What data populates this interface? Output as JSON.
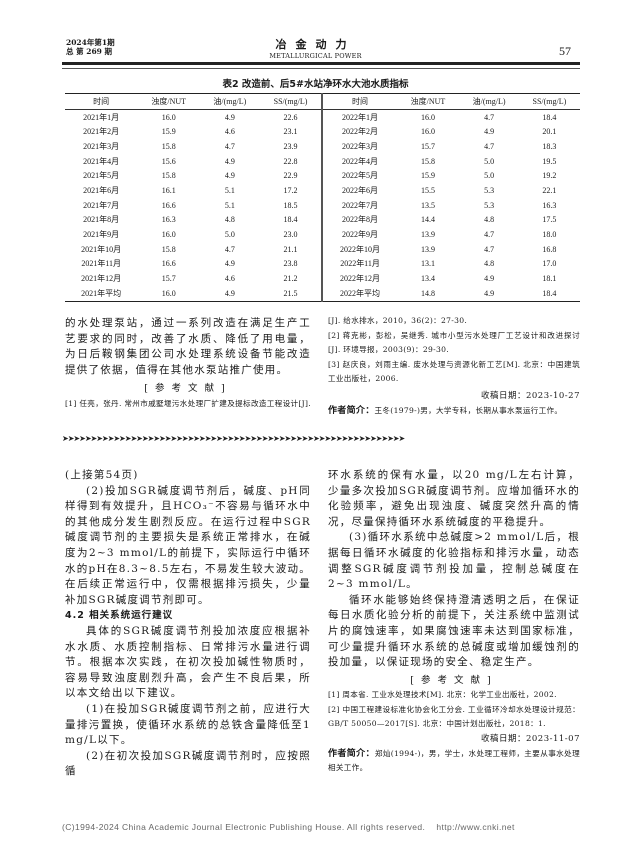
{
  "header": {
    "issue_line1": "2024年第1期",
    "issue_line2": "总 第 269 期",
    "journal_cn": "冶金动力",
    "journal_en": "METALLURGICAL POWER",
    "page_number": "57"
  },
  "table": {
    "caption": "表2 改造前、后5#水站净环水大池水质指标",
    "columns": [
      "时间",
      "浊度/NUT",
      "油/(mg/L)",
      "SS/(mg/L)",
      "时间",
      "浊度/NUT",
      "油/(mg/L)",
      "SS/(mg/L)"
    ],
    "rows": [
      [
        "2021年1月",
        "16.0",
        "4.9",
        "22.6",
        "2022年1月",
        "16.0",
        "4.7",
        "18.4"
      ],
      [
        "2021年2月",
        "15.9",
        "4.6",
        "23.1",
        "2022年2月",
        "16.0",
        "4.9",
        "20.1"
      ],
      [
        "2021年3月",
        "15.8",
        "4.7",
        "23.9",
        "2022年3月",
        "15.7",
        "4.7",
        "18.3"
      ],
      [
        "2021年4月",
        "15.6",
        "4.9",
        "22.8",
        "2022年4月",
        "15.8",
        "5.0",
        "19.5"
      ],
      [
        "2021年5月",
        "15.8",
        "4.9",
        "22.9",
        "2022年5月",
        "15.9",
        "5.0",
        "19.2"
      ],
      [
        "2021年6月",
        "16.1",
        "5.1",
        "17.2",
        "2022年6月",
        "15.5",
        "5.3",
        "22.1"
      ],
      [
        "2021年7月",
        "16.6",
        "5.1",
        "18.5",
        "2022年7月",
        "13.5",
        "5.3",
        "16.3"
      ],
      [
        "2021年8月",
        "16.3",
        "4.8",
        "18.4",
        "2022年8月",
        "14.4",
        "4.8",
        "17.5"
      ],
      [
        "2021年9月",
        "16.0",
        "5.0",
        "23.0",
        "2022年9月",
        "13.9",
        "4.7",
        "18.0"
      ],
      [
        "2021年10月",
        "15.8",
        "4.7",
        "21.1",
        "2022年10月",
        "13.9",
        "4.7",
        "16.8"
      ],
      [
        "2021年11月",
        "16.6",
        "4.9",
        "23.8",
        "2022年11月",
        "13.1",
        "4.8",
        "17.0"
      ],
      [
        "2021年12月",
        "15.7",
        "4.6",
        "21.2",
        "2022年12月",
        "13.4",
        "4.9",
        "18.1"
      ],
      [
        "2021年平均",
        "16.0",
        "4.9",
        "21.5",
        "2022年平均",
        "14.8",
        "4.9",
        "18.4"
      ]
    ]
  },
  "article1": {
    "conclusion": "的水处理泵站，通过一系列改造在满足生产工艺要求的同时，改善了水质、降低了用电量，为日后鞍钢集团公司水处理系统设备节能改造提供了依据，值得在其他水泵站推广使用。",
    "refs_heading": "[参考文献]",
    "ref1": "[1] 任亮，张丹. 常州市戚墅堰污水处理厂扩建及提标改造工程设计[J]. 给水排水，2010，36(2)：27-30.",
    "ref1_a": "[1] 任亮，张丹. 常州市戚墅堰污水处理厂扩建及提标改造工程设计",
    "ref1_b": "[J]. 给水排水，2010，36(2)：27-30.",
    "ref2": "[2] 蒋克彬，彭松，吴继秀. 城市小型污水处理厂工艺设计和改进探讨[J]. 环境导报，2003(9)：29-30.",
    "ref3": "[3] 赵庆良，刘雨主编. 废水处理与资源化新工艺[M]. 北京：中国建筑工业出版社，2006.",
    "received": "收稿日期：2023-10-27",
    "author_label": "作者简介：",
    "author": "王冬(1979-)男，大学专科，长期从事水泵运行工作。"
  },
  "article2": {
    "continued": "(上接第54页)",
    "p1": "(2)投加SGR碱度调节剂后，碱度、pH同样得到有效提升，且HCO₃⁻不容易与循环水中的其他成分发生剧烈反应。在运行过程中SGR碱度调节剂的主要损失是系统正常排水，在碱度为2~3 mmol/L的前提下，实际运行中循环水的pH在8.3~8.5左右，不易发生较大波动。在后续正常运行中，仅需根据排污损失，少量补加SGR碱度调节剂即可。",
    "section": "4.2 相关系统运行建议",
    "p2": "具体的SGR碱度调节剂投加浓度应根据补水水质、水质控制指标、日常排污水量进行调节。根据本次实践，在初次投加碱性物质时，容易导致浊度剧烈升高，会产生不良后果，所以本文给出以下建议。",
    "p3": "(1)在投加SGR碱度调节剂之前，应进行大量排污置换，使循环水系统的总铁含量降低至1 mg/L以下。",
    "p4": "(2)在初次投加SGR碱度调节剂时，应按照循环水系统的保有水量，以20 mg/L左右计算，少量多次投加SGR碱度调节剂。应增加循环水的化验频率，避免出现浊度、碱度突然升高的情况，尽量保持循环水系统碱度的平稳提升。",
    "p5": "(3)循环水系统中总碱度>2 mmol/L后，根据每日循环水碱度的化验指标和排污水量，动态调整SGR碱度调节剂投加量，控制总碱度在2~3 mmol/L。",
    "p6": "循环水能够始终保持澄清透明之后，在保证每日水质化验分析的前提下，关注系统中监测试片的腐蚀速率，如果腐蚀速率未达到国家标准，可少量提升循环水系统的总碱度或增加缓蚀剂的投加量，以保证现场的安全、稳定生产。",
    "refs_heading": "[参考文献]",
    "ref1": "[1] 周本省. 工业水处理技术[M]. 北京：化学工业出版社，2002.",
    "ref2": "[2] 中国工程建设标准化协会化工分会. 工业循环冷却水处理设计规范：GB/T 50050—2017[S]. 北京：中国计划出版社，2018：1.",
    "received": "收稿日期：2023-11-07",
    "author_label": "作者简介：",
    "author": "郑灿(1994-)，男，学士，水处理工程师，主要从事水处理相关工作。"
  },
  "footer": "(C)1994-2024 China Academic Journal Electronic Publishing House. All rights reserved.    http://www.cnki.net"
}
